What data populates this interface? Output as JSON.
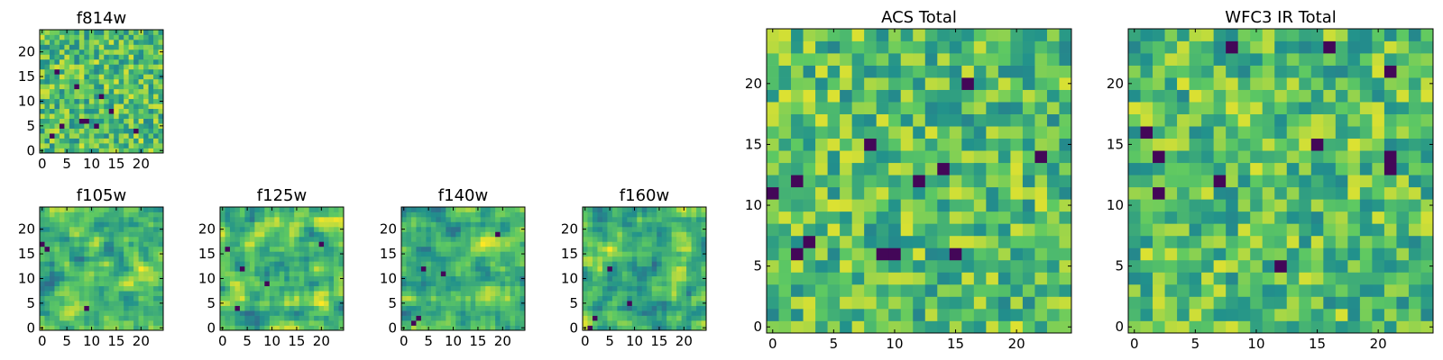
{
  "figure": {
    "description": "Grid of 2D heatmap panels (viridis colormap) for HST filters and totals"
  },
  "colormap": {
    "name": "viridis",
    "stops": [
      "#440154",
      "#3b528b",
      "#21918c",
      "#5ec962",
      "#fde725"
    ]
  },
  "chart_data": [
    {
      "type": "heatmap",
      "title": "f814w",
      "grid_size": 25,
      "xlim": [
        0,
        24
      ],
      "ylim": [
        0,
        24
      ],
      "xticks": [
        0,
        5,
        10,
        15,
        20
      ],
      "yticks": [
        0,
        5,
        10,
        15,
        20
      ],
      "value_range": [
        0,
        1
      ],
      "seed": 814,
      "smoothness": 0,
      "dark_spots": [
        [
          4,
          5
        ],
        [
          8,
          6
        ],
        [
          9,
          6
        ],
        [
          11,
          5
        ],
        [
          2,
          3
        ],
        [
          7,
          13
        ],
        [
          14,
          8
        ],
        [
          19,
          4
        ],
        [
          12,
          11
        ],
        [
          3,
          16
        ]
      ]
    },
    {
      "type": "heatmap",
      "title": "f105w",
      "grid_size": 25,
      "xlim": [
        0,
        24
      ],
      "ylim": [
        0,
        24
      ],
      "xticks": [
        0,
        5,
        10,
        15,
        20
      ],
      "yticks": [
        0,
        5,
        10,
        15,
        20
      ],
      "value_range": [
        0,
        1
      ],
      "seed": 105,
      "smoothness": 1,
      "dark_spots": [
        [
          9,
          4
        ],
        [
          1,
          16
        ],
        [
          0,
          17
        ]
      ]
    },
    {
      "type": "heatmap",
      "title": "f125w",
      "grid_size": 25,
      "xlim": [
        0,
        24
      ],
      "ylim": [
        0,
        24
      ],
      "xticks": [
        0,
        5,
        10,
        15,
        20
      ],
      "yticks": [
        0,
        5,
        10,
        15,
        20
      ],
      "value_range": [
        0,
        1
      ],
      "seed": 125,
      "smoothness": 1,
      "dark_spots": [
        [
          4,
          12
        ],
        [
          9,
          9
        ],
        [
          20,
          17
        ],
        [
          3,
          4
        ],
        [
          1,
          16
        ]
      ]
    },
    {
      "type": "heatmap",
      "title": "f140w",
      "grid_size": 25,
      "xlim": [
        0,
        24
      ],
      "ylim": [
        0,
        24
      ],
      "xticks": [
        0,
        5,
        10,
        15,
        20
      ],
      "yticks": [
        0,
        5,
        10,
        15,
        20
      ],
      "value_range": [
        0,
        1
      ],
      "seed": 140,
      "smoothness": 1,
      "dark_spots": [
        [
          4,
          12
        ],
        [
          8,
          11
        ],
        [
          3,
          2
        ],
        [
          2,
          1
        ],
        [
          19,
          19
        ]
      ]
    },
    {
      "type": "heatmap",
      "title": "f160w",
      "grid_size": 25,
      "xlim": [
        0,
        24
      ],
      "ylim": [
        0,
        24
      ],
      "xticks": [
        0,
        5,
        10,
        15,
        20
      ],
      "yticks": [
        0,
        5,
        10,
        15,
        20
      ],
      "value_range": [
        0,
        1
      ],
      "seed": 160,
      "smoothness": 1,
      "dark_spots": [
        [
          5,
          12
        ],
        [
          2,
          2
        ],
        [
          1,
          0
        ],
        [
          9,
          5
        ]
      ]
    },
    {
      "type": "heatmap",
      "title": "ACS Total",
      "grid_size": 25,
      "xlim": [
        0,
        24
      ],
      "ylim": [
        0,
        24
      ],
      "xticks": [
        0,
        5,
        10,
        15,
        20
      ],
      "yticks": [
        0,
        5,
        10,
        15,
        20
      ],
      "value_range": [
        0,
        1
      ],
      "seed": 9001,
      "smoothness": 0,
      "dark_spots": [
        [
          3,
          7
        ],
        [
          2,
          6
        ],
        [
          8,
          15
        ],
        [
          9,
          6
        ],
        [
          10,
          6
        ],
        [
          15,
          6
        ],
        [
          16,
          20
        ],
        [
          22,
          14
        ],
        [
          14,
          13
        ],
        [
          2,
          12
        ],
        [
          0,
          11
        ],
        [
          12,
          12
        ]
      ]
    },
    {
      "type": "heatmap",
      "title": "WFC3 IR Total",
      "grid_size": 25,
      "xlim": [
        0,
        24
      ],
      "ylim": [
        0,
        24
      ],
      "xticks": [
        0,
        5,
        10,
        15,
        20
      ],
      "yticks": [
        0,
        5,
        10,
        15,
        20
      ],
      "value_range": [
        0,
        1
      ],
      "seed": 9002,
      "smoothness": 0,
      "dark_spots": [
        [
          2,
          11
        ],
        [
          2,
          14
        ],
        [
          1,
          16
        ],
        [
          7,
          12
        ],
        [
          12,
          5
        ],
        [
          21,
          13
        ],
        [
          21,
          14
        ],
        [
          21,
          21
        ],
        [
          16,
          23
        ],
        [
          15,
          15
        ],
        [
          8,
          23
        ]
      ]
    }
  ]
}
